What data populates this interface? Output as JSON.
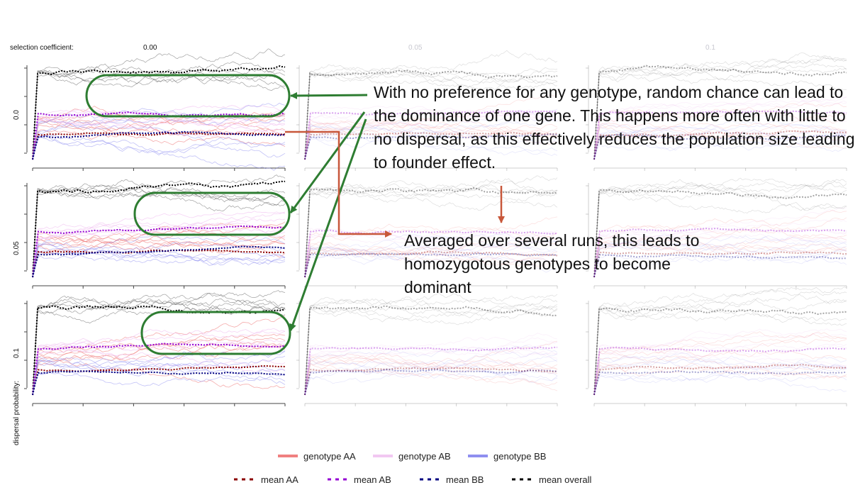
{
  "figure": {
    "selection_label": "selection coefficient:",
    "column_labels": [
      "0.00",
      "0.05",
      "0.1"
    ],
    "row_labels": [
      "0.0",
      "0.05",
      "0.1"
    ],
    "y_axis_title": "dispersal probability:"
  },
  "annotations": {
    "main": "With no preference for any genotype, random chance can lead to the dominance of one gene. This happens more often with little to no dispersal, as this effectively reduces the population size leading to founder effect.",
    "secondary": "Averaged over several runs, this leads to homozygotous genotypes to become dominant"
  },
  "legend": {
    "genotype_items": [
      {
        "label": "genotype AA",
        "color": "#f08080"
      },
      {
        "label": "genotype AB",
        "color": "#f2c8f2"
      },
      {
        "label": "genotype BB",
        "color": "#8f8ff0"
      }
    ],
    "mean_items": [
      {
        "label": "mean AA",
        "color": "#8b0000"
      },
      {
        "label": "mean AB",
        "color": "#9400d3"
      },
      {
        "label": "mean BB",
        "color": "#000080"
      },
      {
        "label": "mean overall",
        "color": "#000000"
      }
    ]
  },
  "colors": {
    "highlight_green": "#2e7d32",
    "arrow_orange": "#c8573a"
  },
  "chart_data": {
    "type": "line",
    "layout": "3x3 grid of small multiples",
    "x_ticks_labeled": false,
    "y_ticks_labeled": false,
    "rows_dispersal_probability": [
      0.0,
      0.05,
      0.1
    ],
    "cols_selection_coefficient": [
      0.0,
      0.05,
      0.1
    ],
    "series": [
      {
        "name": "mean overall",
        "level": "high",
        "style": "dotted",
        "color": "#000000"
      },
      {
        "name": "mean AB",
        "level": "middle",
        "style": "dotted",
        "color": "#9400d3"
      },
      {
        "name": "mean AA",
        "level": "lower",
        "style": "dotted",
        "color": "#8b0000"
      },
      {
        "name": "mean BB",
        "level": "lower",
        "style": "dotted",
        "color": "#000080"
      }
    ]
  }
}
